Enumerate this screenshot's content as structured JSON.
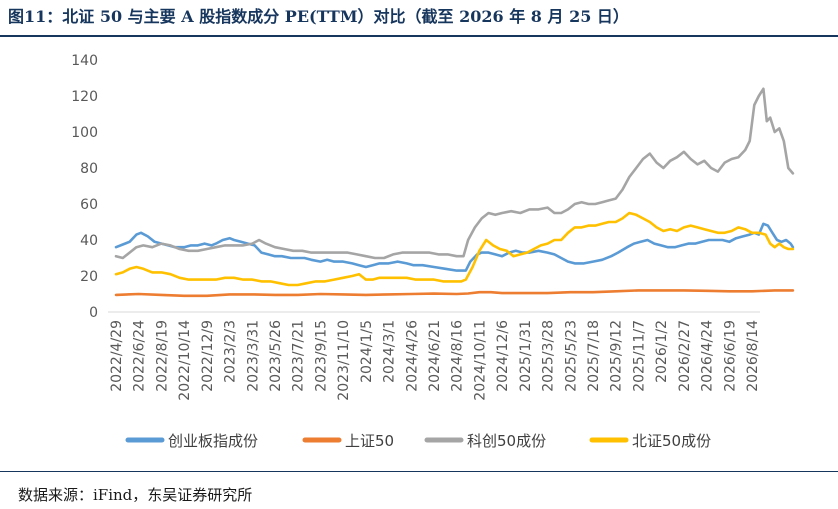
{
  "figure": {
    "title": "图11：北证 50 与主要 A 股指数成分 PE(TTM）对比（截至 2026 年 8 月 25 日）",
    "source": "数据来源：iFind，东吴证券研究所"
  },
  "chart_data": {
    "type": "line",
    "ylim": [
      0,
      140
    ],
    "yticks": [
      "0",
      "20",
      "40",
      "60",
      "80",
      "100",
      "120",
      "140"
    ],
    "xtick_labels": [
      "2022/4/29",
      "2022/6/24",
      "2022/8/19",
      "2022/10/14",
      "2022/12/9",
      "2023/2/3",
      "2023/3/31",
      "2023/5/26",
      "2023/7/21",
      "2023/9/15",
      "2023/11/10",
      "2024/1/5",
      "2024/3/1",
      "2024/4/26",
      "2024/6/21",
      "2024/8/16",
      "2024/10/11",
      "2024/12/6",
      "2025/1/31",
      "2025/3/28",
      "2025/5/23",
      "2025/7/18",
      "2025/9/12",
      "2025/11/7",
      "2026/1/2",
      "2026/2/27",
      "2026/4/24",
      "2026/6/19",
      "2026/8/14"
    ],
    "grid": false,
    "legend_position": "bottom",
    "series": [
      {
        "name": "创业板指成份",
        "color": "#5b9bd5",
        "points": [
          [
            0,
            36
          ],
          [
            0.3,
            37.5
          ],
          [
            0.6,
            39
          ],
          [
            0.9,
            43
          ],
          [
            1.1,
            44
          ],
          [
            1.4,
            42
          ],
          [
            1.7,
            39
          ],
          [
            2.0,
            38
          ],
          [
            2.3,
            37
          ],
          [
            2.6,
            36
          ],
          [
            3.0,
            36
          ],
          [
            3.3,
            37
          ],
          [
            3.6,
            37
          ],
          [
            3.9,
            38
          ],
          [
            4.2,
            37
          ],
          [
            4.4,
            38
          ],
          [
            4.7,
            40
          ],
          [
            5.0,
            41
          ],
          [
            5.2,
            40
          ],
          [
            5.5,
            39
          ],
          [
            5.8,
            38
          ],
          [
            6.1,
            37
          ],
          [
            6.4,
            33
          ],
          [
            6.7,
            32
          ],
          [
            7.0,
            31
          ],
          [
            7.3,
            31
          ],
          [
            7.7,
            30
          ],
          [
            8.0,
            30
          ],
          [
            8.3,
            30
          ],
          [
            8.6,
            29
          ],
          [
            9.0,
            28
          ],
          [
            9.3,
            29
          ],
          [
            9.6,
            28
          ],
          [
            10.0,
            28
          ],
          [
            10.4,
            27
          ],
          [
            10.7,
            26
          ],
          [
            11.0,
            25
          ],
          [
            11.3,
            26
          ],
          [
            11.6,
            27
          ],
          [
            12.0,
            27
          ],
          [
            12.4,
            28
          ],
          [
            12.8,
            27
          ],
          [
            13.1,
            26
          ],
          [
            13.5,
            26
          ],
          [
            14.0,
            25
          ],
          [
            14.5,
            24
          ],
          [
            15.0,
            23
          ],
          [
            15.4,
            23
          ],
          [
            15.6,
            28
          ],
          [
            15.9,
            32
          ],
          [
            16.1,
            33
          ],
          [
            16.4,
            33
          ],
          [
            16.7,
            32
          ],
          [
            17.0,
            31
          ],
          [
            17.3,
            33
          ],
          [
            17.6,
            34
          ],
          [
            17.9,
            33
          ],
          [
            18.2,
            33
          ],
          [
            18.6,
            34
          ],
          [
            19.0,
            33
          ],
          [
            19.3,
            32
          ],
          [
            19.6,
            30
          ],
          [
            19.9,
            28
          ],
          [
            20.2,
            27
          ],
          [
            20.6,
            27
          ],
          [
            21.0,
            28
          ],
          [
            21.4,
            29
          ],
          [
            21.8,
            31
          ],
          [
            22.1,
            33
          ],
          [
            22.5,
            36
          ],
          [
            22.8,
            38
          ],
          [
            23.1,
            39
          ],
          [
            23.4,
            40
          ],
          [
            23.7,
            38
          ],
          [
            24.0,
            37
          ],
          [
            24.3,
            36
          ],
          [
            24.6,
            36
          ],
          [
            24.9,
            37
          ],
          [
            25.2,
            38
          ],
          [
            25.5,
            38
          ],
          [
            25.8,
            39
          ],
          [
            26.1,
            40
          ],
          [
            26.4,
            40
          ],
          [
            26.7,
            40
          ],
          [
            27.0,
            39
          ],
          [
            27.3,
            41
          ],
          [
            27.6,
            42
          ],
          [
            27.9,
            43
          ],
          [
            28.1,
            44
          ],
          [
            28.3,
            43
          ],
          [
            28.5,
            49
          ],
          [
            28.7,
            48
          ],
          [
            28.9,
            44
          ],
          [
            29.1,
            40
          ],
          [
            29.3,
            39
          ],
          [
            29.5,
            40
          ],
          [
            29.7,
            38
          ],
          [
            29.8,
            36
          ]
        ]
      },
      {
        "name": "上证50",
        "color": "#ed7d31",
        "points": [
          [
            0,
            9.5
          ],
          [
            1,
            10
          ],
          [
            2,
            9.5
          ],
          [
            3,
            9
          ],
          [
            4,
            9
          ],
          [
            5,
            9.8
          ],
          [
            6,
            9.8
          ],
          [
            7,
            9.5
          ],
          [
            8,
            9.5
          ],
          [
            9,
            10
          ],
          [
            10,
            9.8
          ],
          [
            11,
            9.5
          ],
          [
            12,
            9.8
          ],
          [
            13,
            10
          ],
          [
            14,
            10.2
          ],
          [
            15,
            10
          ],
          [
            15.5,
            10.3
          ],
          [
            16,
            11
          ],
          [
            16.5,
            11
          ],
          [
            17,
            10.5
          ],
          [
            18,
            10.5
          ],
          [
            19,
            10.5
          ],
          [
            20,
            11
          ],
          [
            21,
            11
          ],
          [
            22,
            11.5
          ],
          [
            23,
            12
          ],
          [
            24,
            12
          ],
          [
            25,
            12
          ],
          [
            26,
            11.8
          ],
          [
            27,
            11.5
          ],
          [
            28,
            11.5
          ],
          [
            29,
            12
          ],
          [
            29.8,
            12
          ]
        ]
      },
      {
        "name": "科创50成份",
        "color": "#a5a5a5",
        "points": [
          [
            0,
            31
          ],
          [
            0.3,
            30
          ],
          [
            0.6,
            33
          ],
          [
            0.9,
            36
          ],
          [
            1.2,
            37
          ],
          [
            1.6,
            36
          ],
          [
            2.0,
            38
          ],
          [
            2.4,
            37
          ],
          [
            2.8,
            35
          ],
          [
            3.2,
            34
          ],
          [
            3.6,
            34
          ],
          [
            4.0,
            35
          ],
          [
            4.4,
            36
          ],
          [
            4.8,
            37
          ],
          [
            5.2,
            37
          ],
          [
            5.6,
            37
          ],
          [
            6.0,
            38
          ],
          [
            6.3,
            40
          ],
          [
            6.6,
            38
          ],
          [
            7.0,
            36
          ],
          [
            7.4,
            35
          ],
          [
            7.8,
            34
          ],
          [
            8.2,
            34
          ],
          [
            8.6,
            33
          ],
          [
            9.0,
            33
          ],
          [
            9.4,
            33
          ],
          [
            9.8,
            33
          ],
          [
            10.2,
            33
          ],
          [
            10.6,
            32
          ],
          [
            11.0,
            31
          ],
          [
            11.4,
            30
          ],
          [
            11.8,
            30
          ],
          [
            12.2,
            32
          ],
          [
            12.6,
            33
          ],
          [
            13.0,
            33
          ],
          [
            13.4,
            33
          ],
          [
            13.8,
            33
          ],
          [
            14.2,
            32
          ],
          [
            14.6,
            32
          ],
          [
            15.0,
            31
          ],
          [
            15.3,
            31
          ],
          [
            15.5,
            40
          ],
          [
            15.8,
            47
          ],
          [
            16.1,
            52
          ],
          [
            16.4,
            55
          ],
          [
            16.7,
            54
          ],
          [
            17.0,
            55
          ],
          [
            17.4,
            56
          ],
          [
            17.8,
            55
          ],
          [
            18.2,
            57
          ],
          [
            18.6,
            57
          ],
          [
            19.0,
            58
          ],
          [
            19.3,
            55
          ],
          [
            19.6,
            55
          ],
          [
            19.9,
            57
          ],
          [
            20.2,
            60
          ],
          [
            20.5,
            61
          ],
          [
            20.8,
            60
          ],
          [
            21.1,
            60
          ],
          [
            21.4,
            61
          ],
          [
            21.7,
            62
          ],
          [
            22.0,
            63
          ],
          [
            22.3,
            68
          ],
          [
            22.6,
            75
          ],
          [
            22.9,
            80
          ],
          [
            23.2,
            85
          ],
          [
            23.5,
            88
          ],
          [
            23.8,
            83
          ],
          [
            24.1,
            80
          ],
          [
            24.4,
            84
          ],
          [
            24.7,
            86
          ],
          [
            25.0,
            89
          ],
          [
            25.3,
            85
          ],
          [
            25.6,
            82
          ],
          [
            25.9,
            84
          ],
          [
            26.2,
            80
          ],
          [
            26.5,
            78
          ],
          [
            26.8,
            83
          ],
          [
            27.1,
            85
          ],
          [
            27.4,
            86
          ],
          [
            27.7,
            90
          ],
          [
            27.9,
            95
          ],
          [
            28.1,
            115
          ],
          [
            28.3,
            120
          ],
          [
            28.5,
            124
          ],
          [
            28.65,
            106
          ],
          [
            28.8,
            108
          ],
          [
            29.0,
            100
          ],
          [
            29.2,
            102
          ],
          [
            29.4,
            95
          ],
          [
            29.6,
            80
          ],
          [
            29.8,
            77
          ]
        ]
      },
      {
        "name": "北证50成份",
        "color": "#ffc000",
        "points": [
          [
            0,
            21
          ],
          [
            0.3,
            22
          ],
          [
            0.6,
            24
          ],
          [
            0.9,
            25
          ],
          [
            1.2,
            24
          ],
          [
            1.6,
            22
          ],
          [
            2.0,
            22
          ],
          [
            2.4,
            21
          ],
          [
            2.8,
            19
          ],
          [
            3.2,
            18
          ],
          [
            3.6,
            18
          ],
          [
            4.0,
            18
          ],
          [
            4.4,
            18
          ],
          [
            4.8,
            19
          ],
          [
            5.2,
            19
          ],
          [
            5.6,
            18
          ],
          [
            6.0,
            18
          ],
          [
            6.4,
            17
          ],
          [
            6.8,
            17
          ],
          [
            7.2,
            16
          ],
          [
            7.6,
            15
          ],
          [
            8.0,
            15
          ],
          [
            8.4,
            16
          ],
          [
            8.8,
            17
          ],
          [
            9.2,
            17
          ],
          [
            9.6,
            18
          ],
          [
            10.0,
            19
          ],
          [
            10.4,
            20
          ],
          [
            10.7,
            21
          ],
          [
            11.0,
            18
          ],
          [
            11.3,
            18
          ],
          [
            11.6,
            19
          ],
          [
            12.0,
            19
          ],
          [
            12.4,
            19
          ],
          [
            12.8,
            19
          ],
          [
            13.2,
            18
          ],
          [
            13.6,
            18
          ],
          [
            14.0,
            18
          ],
          [
            14.4,
            17
          ],
          [
            14.8,
            17
          ],
          [
            15.2,
            17
          ],
          [
            15.4,
            18
          ],
          [
            15.7,
            25
          ],
          [
            16.0,
            34
          ],
          [
            16.3,
            40
          ],
          [
            16.6,
            37
          ],
          [
            16.9,
            35
          ],
          [
            17.2,
            34
          ],
          [
            17.5,
            31
          ],
          [
            17.8,
            32
          ],
          [
            18.1,
            33
          ],
          [
            18.4,
            35
          ],
          [
            18.7,
            37
          ],
          [
            19.0,
            38
          ],
          [
            19.3,
            40
          ],
          [
            19.6,
            40
          ],
          [
            19.9,
            44
          ],
          [
            20.2,
            47
          ],
          [
            20.5,
            47
          ],
          [
            20.8,
            48
          ],
          [
            21.1,
            48
          ],
          [
            21.4,
            49
          ],
          [
            21.7,
            50
          ],
          [
            22.0,
            50
          ],
          [
            22.3,
            52
          ],
          [
            22.6,
            55
          ],
          [
            22.9,
            54
          ],
          [
            23.2,
            52
          ],
          [
            23.5,
            50
          ],
          [
            23.8,
            47
          ],
          [
            24.1,
            45
          ],
          [
            24.4,
            46
          ],
          [
            24.7,
            45
          ],
          [
            25.0,
            47
          ],
          [
            25.3,
            48
          ],
          [
            25.6,
            47
          ],
          [
            25.9,
            46
          ],
          [
            26.2,
            45
          ],
          [
            26.5,
            44
          ],
          [
            26.8,
            44
          ],
          [
            27.1,
            45
          ],
          [
            27.4,
            47
          ],
          [
            27.7,
            46
          ],
          [
            28.0,
            44
          ],
          [
            28.3,
            44
          ],
          [
            28.6,
            43
          ],
          [
            28.8,
            38
          ],
          [
            29.0,
            36
          ],
          [
            29.2,
            38
          ],
          [
            29.4,
            36
          ],
          [
            29.6,
            35
          ],
          [
            29.8,
            35
          ]
        ]
      }
    ]
  }
}
